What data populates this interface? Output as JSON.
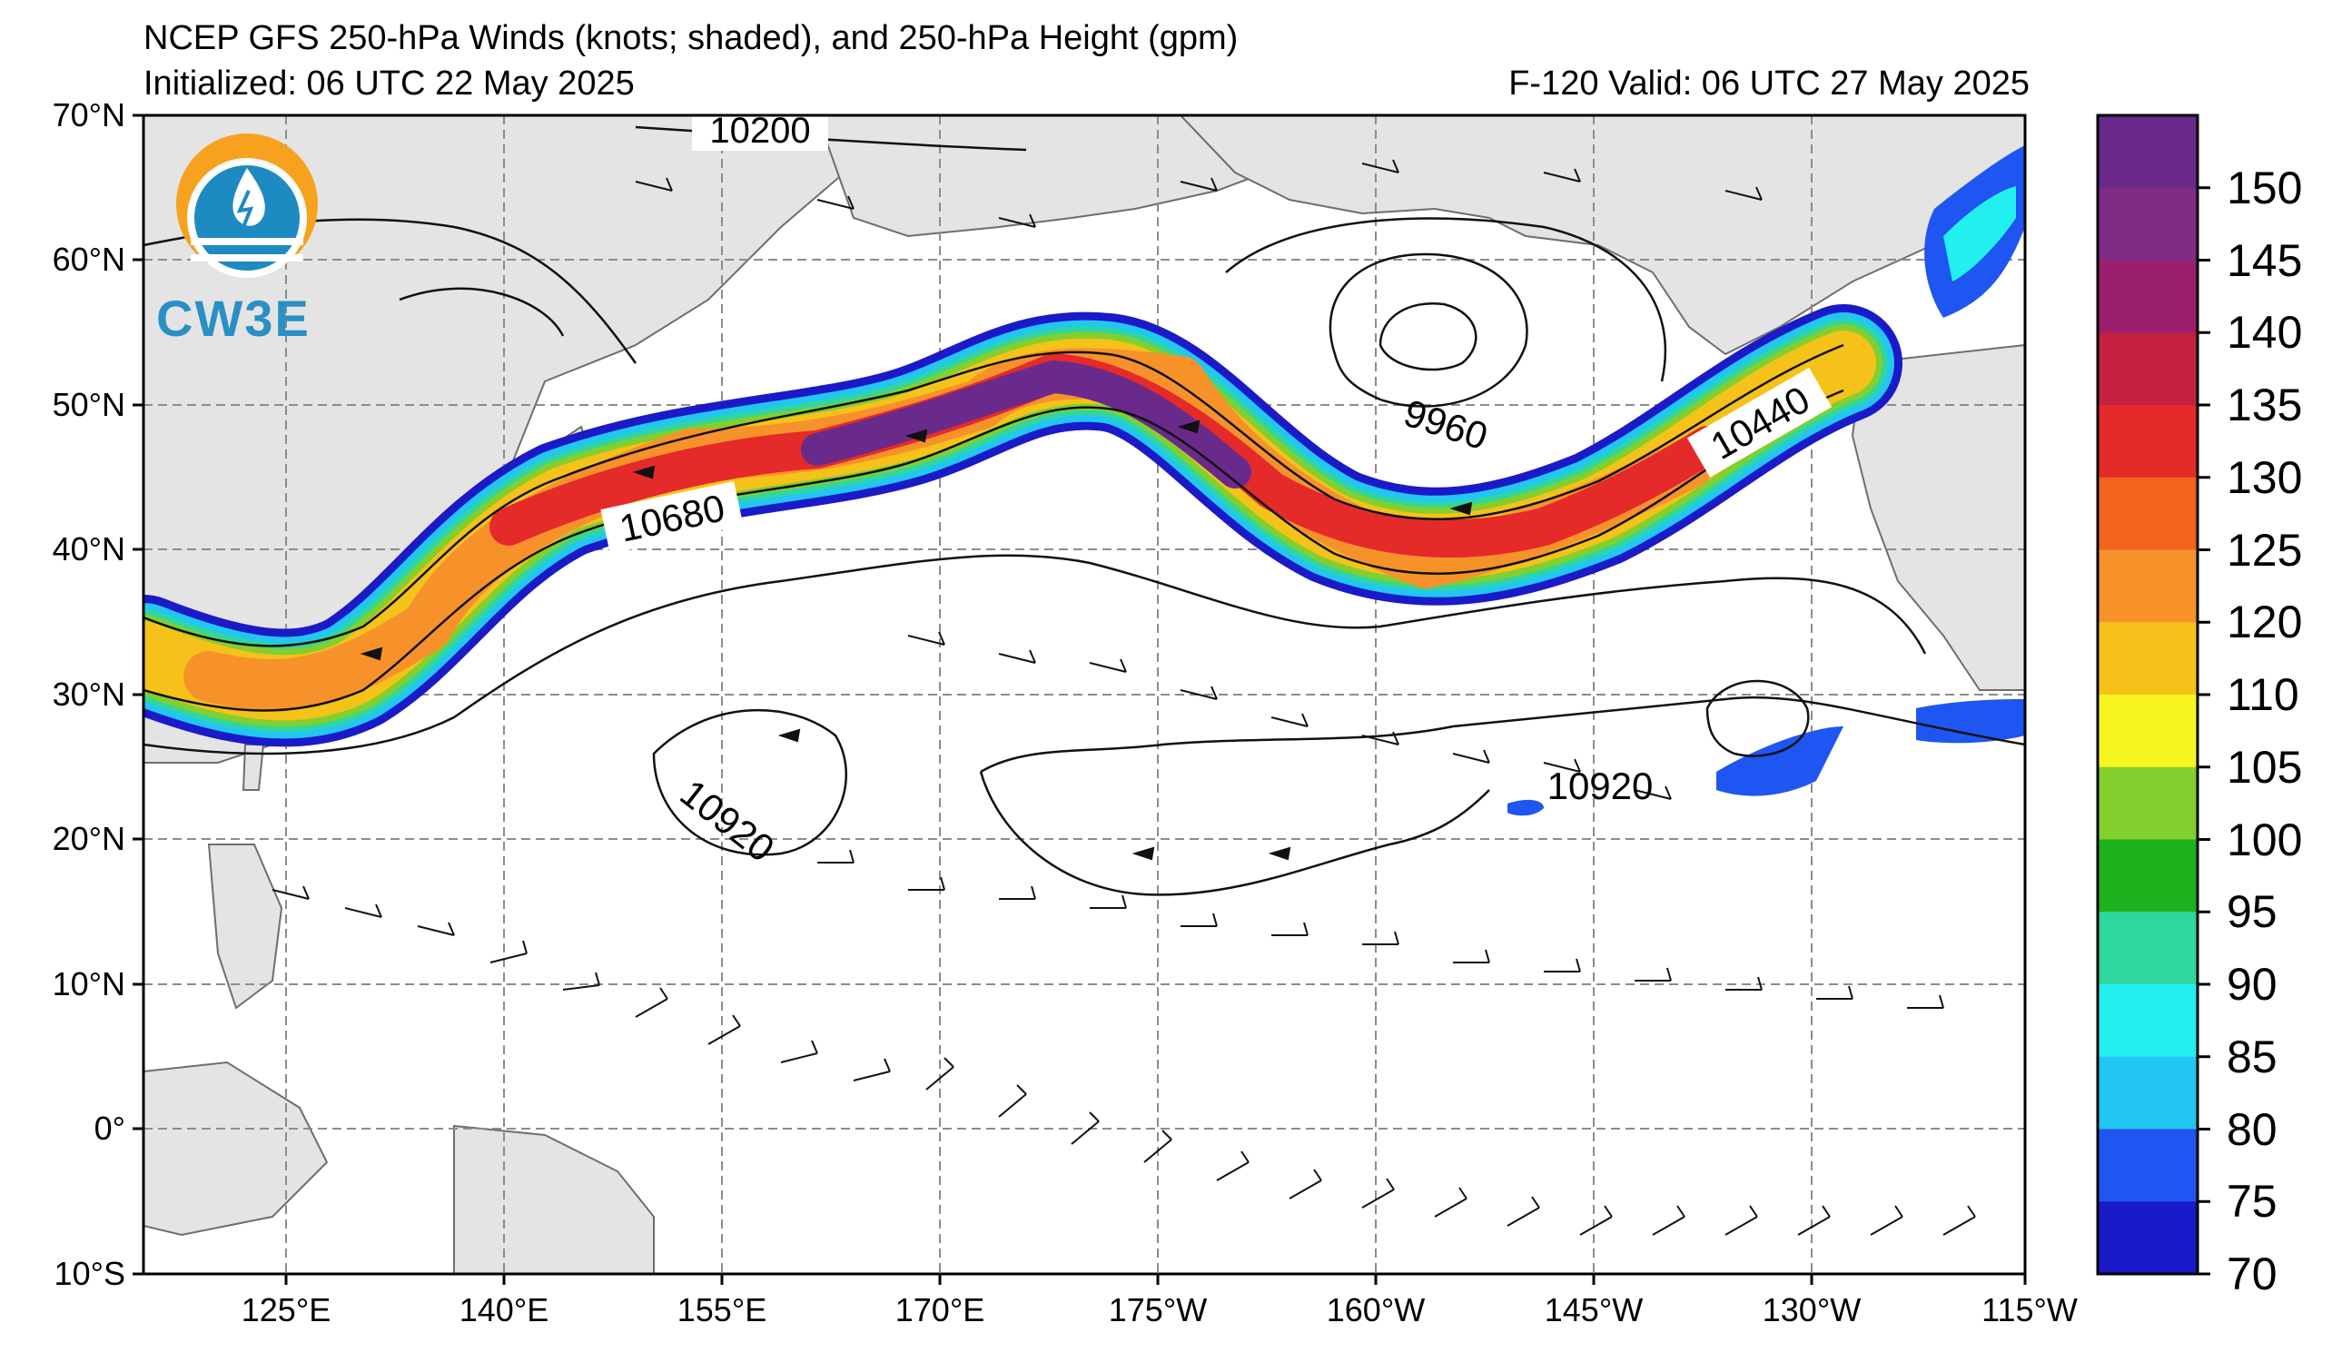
{
  "title": "NCEP GFS 250-hPa Winds (knots; shaded), and 250-hPa Height (gpm)",
  "initialized": "Initialized: 06 UTC 22 May 2025",
  "valid": "F-120  Valid: 06 UTC 27 May 2025",
  "logo_text": "CW3E",
  "lat_labels": [
    "70°N",
    "60°N",
    "50°N",
    "40°N",
    "30°N",
    "20°N",
    "10°N",
    "0°",
    "10°S"
  ],
  "lon_labels": [
    "125°E",
    "140°E",
    "155°E",
    "170°E",
    "175°W",
    "160°W",
    "145°W",
    "130°W",
    "115°W"
  ],
  "contour_labels": [
    "10200",
    "10680",
    "9960",
    "10440",
    "10920",
    "10920"
  ],
  "colorbar": {
    "labels": [
      "150",
      "145",
      "140",
      "135",
      "130",
      "125",
      "120",
      "110",
      "105",
      "100",
      "95",
      "90",
      "85",
      "80",
      "75",
      "70"
    ],
    "colors": [
      "#6a2a8c",
      "#7f2a84",
      "#9b1f6c",
      "#c4213f",
      "#e52a2a",
      "#f3641f",
      "#f7922a",
      "#f5c21a",
      "#f7f520",
      "#82cf2e",
      "#1fb21f",
      "#2fd6a0",
      "#22f0ee",
      "#22c6f3",
      "#1f55f1",
      "#1a1ac8"
    ]
  }
}
